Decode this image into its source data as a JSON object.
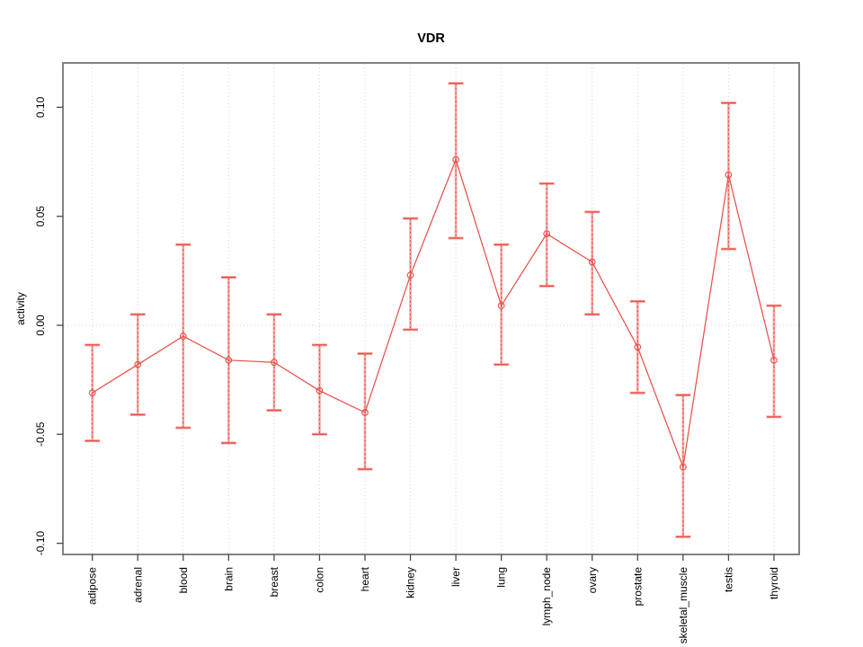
{
  "figure": {
    "title": "VDR",
    "ylabel": "activity",
    "xlabel": ""
  },
  "chart_data": {
    "type": "line",
    "title": "VDR",
    "xlabel": "",
    "ylabel": "activity",
    "legend": "none",
    "grid": {
      "vertical_dotted_per_category": true,
      "horizontal_dotted_at_zero": true
    },
    "ylim": [
      -0.112,
      0.112
    ],
    "yticks": [
      {
        "value": 0.1,
        "label": "0.10"
      },
      {
        "value": 0.05,
        "label": "0.05"
      },
      {
        "value": 0.0,
        "label": "0.00"
      },
      {
        "value": -0.05,
        "label": "-0.05"
      },
      {
        "value": -0.1,
        "label": "-0.10"
      }
    ],
    "categories": [
      "adipose",
      "adrenal",
      "blood",
      "brain",
      "breast",
      "colon",
      "heart",
      "kidney",
      "liver",
      "lung",
      "lymph_node",
      "ovary",
      "prostate",
      "skeletal_muscle",
      "testis",
      "thyroid"
    ],
    "series": [
      {
        "name": "activity",
        "point_style": "open-circle",
        "values": [
          -0.031,
          -0.018,
          -0.005,
          -0.016,
          -0.017,
          -0.03,
          -0.04,
          0.023,
          0.076,
          0.009,
          0.042,
          0.029,
          -0.01,
          -0.065,
          0.069,
          -0.016
        ],
        "upper": [
          -0.009,
          0.005,
          0.037,
          0.022,
          0.005,
          -0.009,
          -0.013,
          0.049,
          0.111,
          0.037,
          0.065,
          0.052,
          0.011,
          -0.032,
          0.102,
          0.009
        ],
        "lower": [
          -0.053,
          -0.041,
          -0.047,
          -0.054,
          -0.039,
          -0.05,
          -0.066,
          -0.002,
          0.04,
          -0.018,
          0.018,
          0.005,
          -0.031,
          -0.097,
          0.035,
          -0.042
        ]
      }
    ],
    "colors": {
      "line": "#e8514a",
      "band": "#f7a8a4",
      "grid": "#d6d6d6",
      "border": "#757575",
      "tick": "#4a4a4a",
      "text": "#000000",
      "background": "#ffffff"
    }
  }
}
